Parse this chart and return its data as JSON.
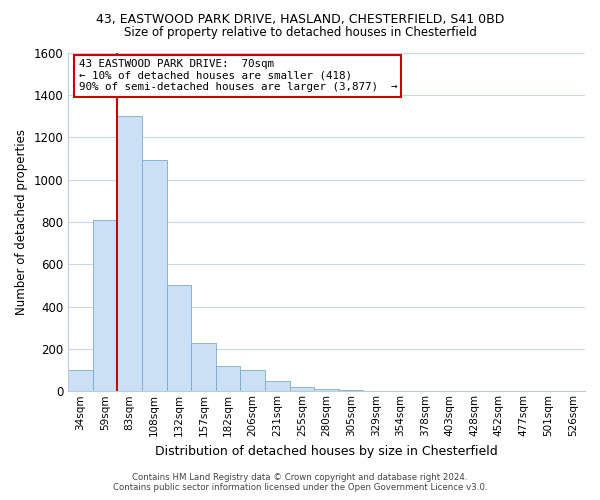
{
  "title_line1": "43, EASTWOOD PARK DRIVE, HASLAND, CHESTERFIELD, S41 0BD",
  "title_line2": "Size of property relative to detached houses in Chesterfield",
  "xlabel": "Distribution of detached houses by size in Chesterfield",
  "ylabel": "Number of detached properties",
  "categories": [
    "34sqm",
    "59sqm",
    "83sqm",
    "108sqm",
    "132sqm",
    "157sqm",
    "182sqm",
    "206sqm",
    "231sqm",
    "255sqm",
    "280sqm",
    "305sqm",
    "329sqm",
    "354sqm",
    "378sqm",
    "403sqm",
    "428sqm",
    "452sqm",
    "477sqm",
    "501sqm",
    "526sqm"
  ],
  "values": [
    100,
    810,
    1300,
    1090,
    500,
    230,
    120,
    100,
    50,
    20,
    10,
    5,
    3,
    2,
    2,
    1,
    1,
    1,
    1,
    1,
    1
  ],
  "bar_color": "#cce0f5",
  "bar_edge_color": "#7aadcc",
  "annotation_text": "43 EASTWOOD PARK DRIVE:  70sqm\n← 10% of detached houses are smaller (418)\n90% of semi-detached houses are larger (3,877)  →",
  "annotation_box_color": "#ffffff",
  "annotation_box_edge": "#cc0000",
  "vline_x": 1.5,
  "vline_color": "#cc0000",
  "ylim": [
    0,
    1600
  ],
  "yticks": [
    0,
    200,
    400,
    600,
    800,
    1000,
    1200,
    1400,
    1600
  ],
  "footer_line1": "Contains HM Land Registry data © Crown copyright and database right 2024.",
  "footer_line2": "Contains public sector information licensed under the Open Government Licence v3.0.",
  "bg_color": "#ffffff",
  "grid_color": "#c8d8e8"
}
